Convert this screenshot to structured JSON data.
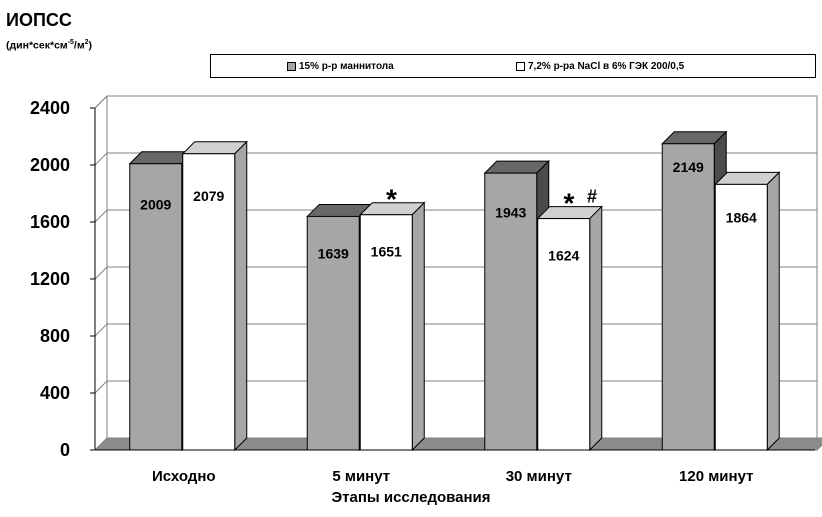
{
  "chart_data": {
    "type": "bar",
    "title": "ИОПСС",
    "ylabel_unit": {
      "pre": "(дин*сек*см",
      "sup1": "-5",
      "mid": "/м",
      "sup2": "2",
      "post": ")"
    },
    "xlabel": "Этапы исследования",
    "categories": [
      "Исходно",
      "5 минут",
      "30 минут",
      "120 минут"
    ],
    "series": [
      {
        "name": "15% р-р маннитола",
        "values": [
          2009,
          1639,
          1943,
          2149
        ],
        "color": "#a6a6a6"
      },
      {
        "name": "7,2% р-ра NaCl в 6% ГЭК 200/0,5",
        "values": [
          2079,
          1651,
          1624,
          1864
        ],
        "color": "#ffffff"
      }
    ],
    "ylim": [
      0,
      2400
    ],
    "yticks": [
      0,
      400,
      800,
      1200,
      1600,
      2000,
      2400
    ],
    "grid": true,
    "legend_position": "top",
    "annotations": [
      {
        "category_index": 1,
        "series_index": 1,
        "text": "*"
      },
      {
        "category_index": 2,
        "series_index": 1,
        "text": "*",
        "superscript": "#"
      }
    ]
  }
}
